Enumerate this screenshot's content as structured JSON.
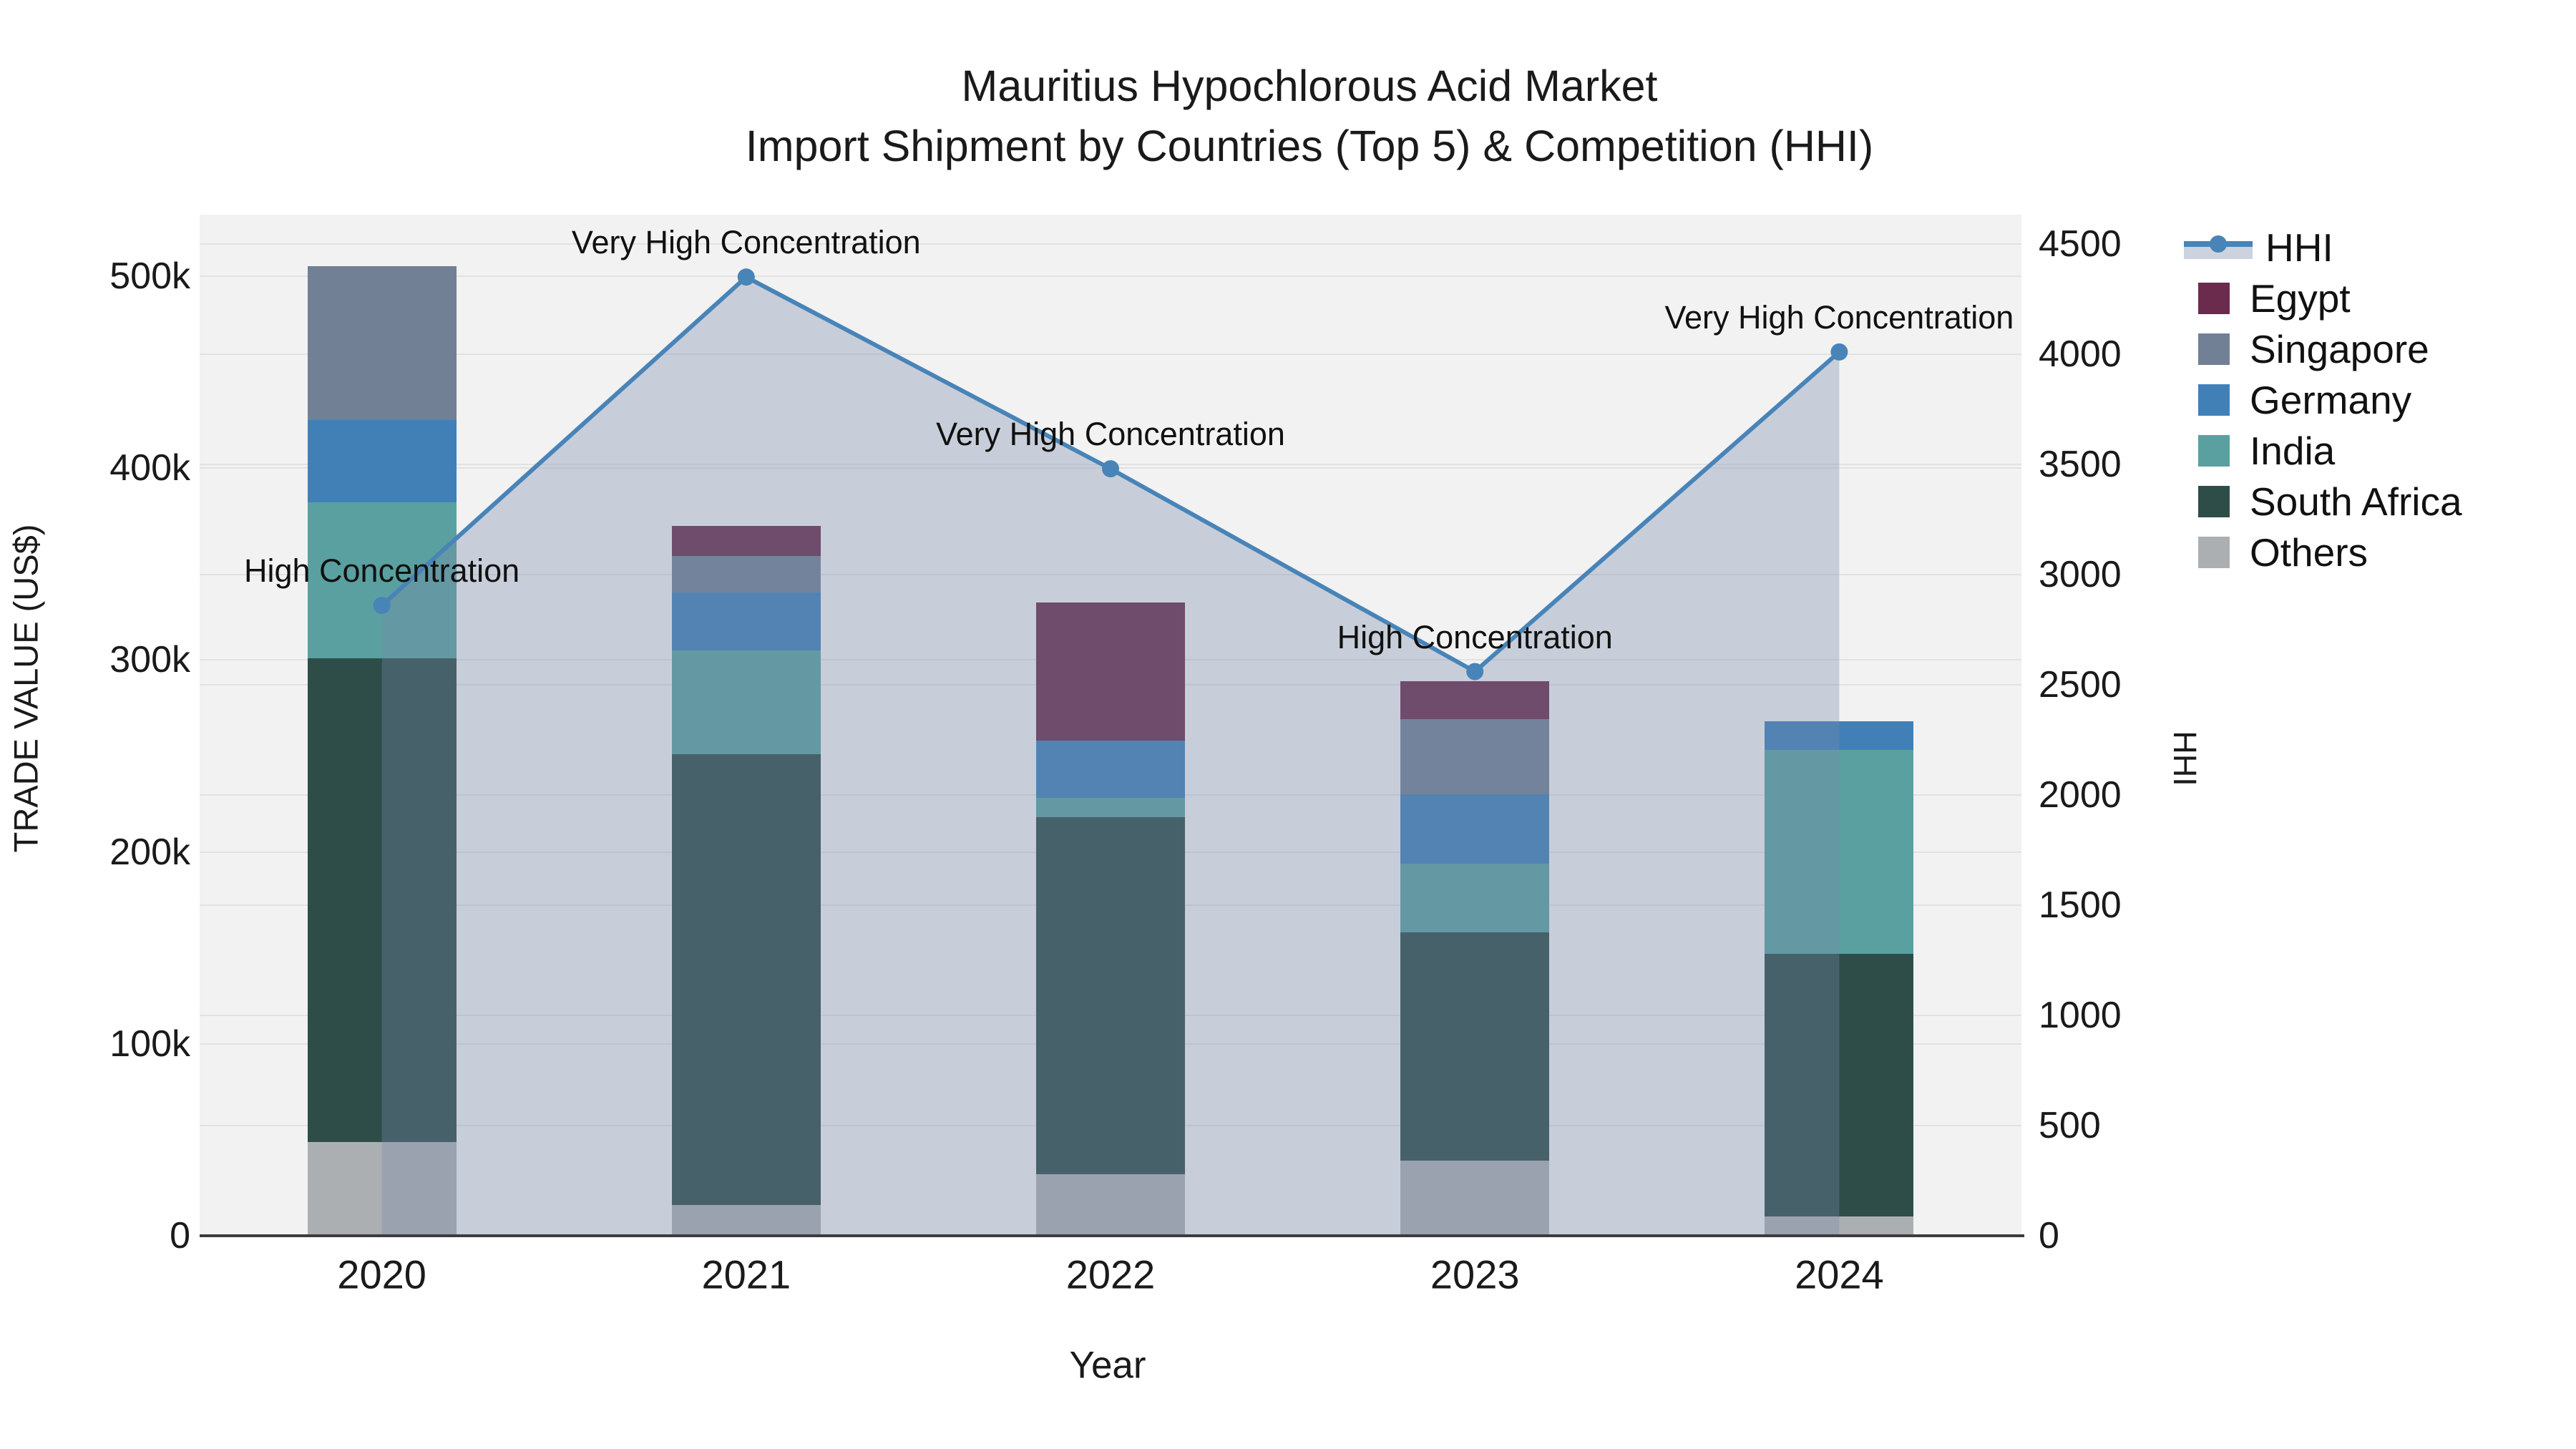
{
  "title": {
    "line1": "Mauritius Hypochlorous Acid Market",
    "line2": "Import Shipment by Countries (Top 5) & Competition (HHI)"
  },
  "chart_data": {
    "type": "stacked-bar+line",
    "categories": [
      "2020",
      "2021",
      "2022",
      "2023",
      "2024"
    ],
    "xlabel": "Year",
    "bar_unit": "US$ thousands",
    "series": [
      {
        "name": "Egypt",
        "color": "#6B2B4D",
        "values": [
          0,
          16,
          72,
          20,
          0
        ]
      },
      {
        "name": "Singapore",
        "color": "#728095",
        "values": [
          80,
          19,
          0,
          39,
          0
        ]
      },
      {
        "name": "Germany",
        "color": "#4180B7",
        "values": [
          43,
          30,
          30,
          36,
          15
        ]
      },
      {
        "name": "India",
        "color": "#5AA0A0",
        "values": [
          81,
          54,
          10,
          36,
          106
        ]
      },
      {
        "name": "South Africa",
        "color": "#2E4D49",
        "values": [
          252,
          235,
          186,
          119,
          137
        ]
      },
      {
        "name": "Others",
        "color": "#ACAFB2",
        "values": [
          49,
          16,
          32,
          39,
          10
        ]
      }
    ],
    "stack_totals": [
      505,
      370,
      330,
      289,
      268
    ],
    "line": {
      "name": "HHI",
      "color": "#4884B8",
      "band_color": "rgba(120,138,170,0.34)",
      "values": [
        2860,
        4350,
        3480,
        2560,
        4010
      ]
    },
    "annotations": [
      "High Concentration",
      "Very High Concentration",
      "Very High Concentration",
      "High Concentration",
      "Very High Concentration"
    ],
    "left_axis": {
      "label": "TRADE VALUE (US$)",
      "ticks": [
        "0",
        "100k",
        "200k",
        "300k",
        "400k",
        "500k"
      ],
      "tick_values": [
        0,
        100,
        200,
        300,
        400,
        500
      ],
      "max": 532
    },
    "right_axis": {
      "label": "HHI",
      "ticks": [
        "0",
        "500",
        "1000",
        "1500",
        "2000",
        "2500",
        "3000",
        "3500",
        "4000",
        "4500"
      ],
      "tick_values": [
        0,
        500,
        1000,
        1500,
        2000,
        2500,
        3000,
        3500,
        4000,
        4500
      ],
      "max": 4633
    },
    "legend": [
      "HHI",
      "Egypt",
      "Singapore",
      "Germany",
      "India",
      "South Africa",
      "Others"
    ],
    "plot_bg": "#f2f2f2",
    "grid_color": "#e2e2e2",
    "grid": true,
    "legend_position": "right"
  }
}
